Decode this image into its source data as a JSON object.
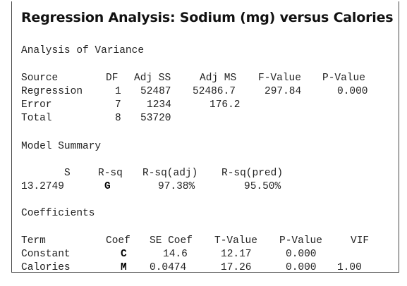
{
  "title": "Regression Analysis: Sodium (mg) versus Calories",
  "anova": {
    "heading": "Analysis of Variance",
    "columns": [
      "Source",
      "DF",
      "Adj SS",
      "Adj MS",
      "F-Value",
      "P-Value"
    ],
    "rows": [
      {
        "source": "Regression",
        "df": "1",
        "adj_ss": "52487",
        "adj_ms": "52486.7",
        "f_value": "297.84",
        "p_value": "0.000"
      },
      {
        "source": "Error",
        "df": "7",
        "adj_ss": "1234",
        "adj_ms": "176.2",
        "f_value": "",
        "p_value": ""
      },
      {
        "source": "Total",
        "df": "8",
        "adj_ss": "53720",
        "adj_ms": "",
        "f_value": "",
        "p_value": ""
      }
    ]
  },
  "model_summary": {
    "heading": "Model Summary",
    "columns": [
      "S",
      "R-sq",
      "R-sq(adj)",
      "R-sq(pred)"
    ],
    "values": {
      "s": "13.2749",
      "r_sq": "G",
      "r_sq_adj": "97.38%",
      "r_sq_pred": "95.50%"
    }
  },
  "coefficients": {
    "heading": "Coefficients",
    "columns": [
      "Term",
      "Coef",
      "SE Coef",
      "T-Value",
      "P-Value",
      "VIF"
    ],
    "rows": [
      {
        "term": "Constant",
        "coef": "C",
        "se_coef": "14.6",
        "t_value": "12.17",
        "p_value": "0.000",
        "vif": ""
      },
      {
        "term": "Calories",
        "coef": "M",
        "se_coef": "0.0474",
        "t_value": "17.26",
        "p_value": "0.000",
        "vif": "1.00"
      }
    ]
  }
}
